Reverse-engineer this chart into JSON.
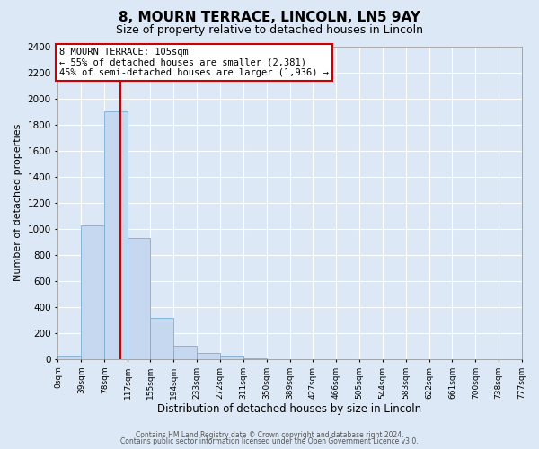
{
  "title": "8, MOURN TERRACE, LINCOLN, LN5 9AY",
  "subtitle": "Size of property relative to detached houses in Lincoln",
  "xlabel": "Distribution of detached houses by size in Lincoln",
  "ylabel": "Number of detached properties",
  "bin_edges": [
    0,
    39,
    78,
    117,
    155,
    194,
    233,
    272,
    311,
    350,
    389,
    427,
    466,
    505,
    544,
    583,
    622,
    661,
    700,
    738,
    777
  ],
  "bin_counts": [
    25,
    1025,
    1900,
    930,
    315,
    105,
    50,
    25,
    5,
    0,
    0,
    0,
    0,
    0,
    0,
    0,
    0,
    0,
    0,
    0
  ],
  "bar_color": "#c5d8ef",
  "bar_edge_color": "#7aaed4",
  "property_size": 105,
  "red_line_color": "#cc0000",
  "annotation_line1": "8 MOURN TERRACE: 105sqm",
  "annotation_line2": "← 55% of detached houses are smaller (2,381)",
  "annotation_line3": "45% of semi-detached houses are larger (1,936) →",
  "annotation_box_facecolor": "#ffffff",
  "annotation_box_edgecolor": "#cc0000",
  "ylim": [
    0,
    2400
  ],
  "yticks": [
    0,
    200,
    400,
    600,
    800,
    1000,
    1200,
    1400,
    1600,
    1800,
    2000,
    2200,
    2400
  ],
  "xtick_labels": [
    "0sqm",
    "39sqm",
    "78sqm",
    "117sqm",
    "155sqm",
    "194sqm",
    "233sqm",
    "272sqm",
    "311sqm",
    "350sqm",
    "389sqm",
    "427sqm",
    "466sqm",
    "505sqm",
    "544sqm",
    "583sqm",
    "622sqm",
    "661sqm",
    "700sqm",
    "738sqm",
    "777sqm"
  ],
  "footer_line1": "Contains HM Land Registry data © Crown copyright and database right 2024.",
  "footer_line2": "Contains public sector information licensed under the Open Government Licence v3.0.",
  "fig_facecolor": "#dce8f5",
  "axes_facecolor": "#dce8f5",
  "grid_color": "#ffffff",
  "title_fontsize": 11,
  "subtitle_fontsize": 9,
  "ylabel_fontsize": 8,
  "xlabel_fontsize": 8.5
}
